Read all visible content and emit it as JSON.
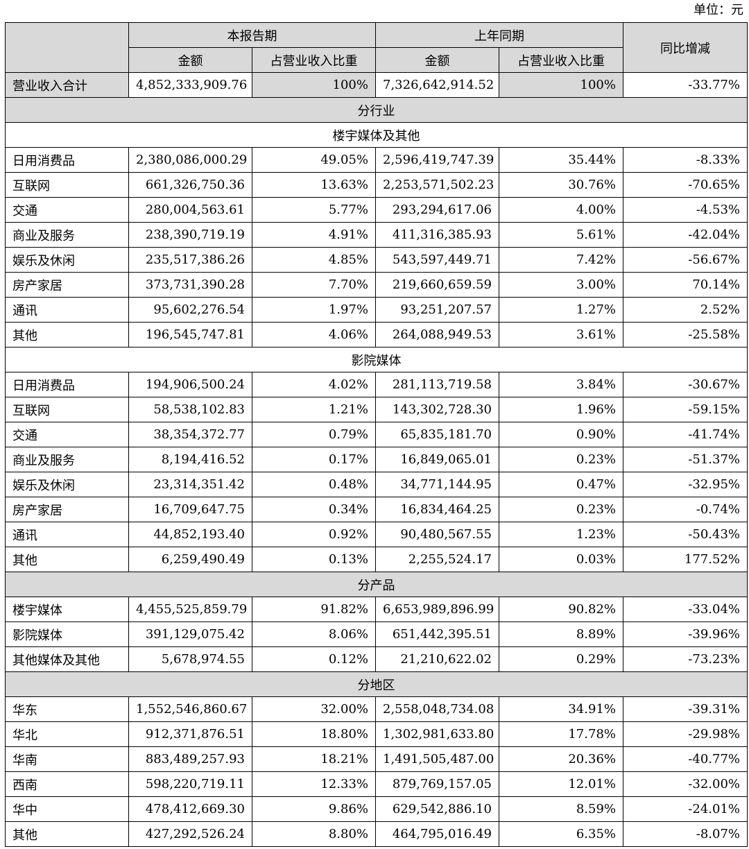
{
  "unit_label": "单位：元",
  "header": {
    "current_period": "本报告期",
    "prior_period": "上年同期",
    "yoy_change": "同比增减",
    "amount": "金额",
    "revenue_share": "占营业收入比重"
  },
  "total": {
    "label": "营业收入合计",
    "amount_current": "4,852,333,909.76",
    "share_current": "100%",
    "amount_prior": "7,326,642,914.52",
    "share_prior": "100%",
    "change": "-33.77%"
  },
  "sections": [
    {
      "title": "分行业",
      "subsections": [
        {
          "title": "楼宇媒体及其他",
          "rows": [
            [
              "日用消费品",
              "2,380,086,000.29",
              "49.05%",
              "2,596,419,747.39",
              "35.44%",
              "-8.33%"
            ],
            [
              "互联网",
              "661,326,750.36",
              "13.63%",
              "2,253,571,502.23",
              "30.76%",
              "-70.65%"
            ],
            [
              "交通",
              "280,004,563.61",
              "5.77%",
              "293,294,617.06",
              "4.00%",
              "-4.53%"
            ],
            [
              "商业及服务",
              "238,390,719.19",
              "4.91%",
              "411,316,385.93",
              "5.61%",
              "-42.04%"
            ],
            [
              "娱乐及休闲",
              "235,517,386.26",
              "4.85%",
              "543,597,449.71",
              "7.42%",
              "-56.67%"
            ],
            [
              "房产家居",
              "373,731,390.28",
              "7.70%",
              "219,660,659.59",
              "3.00%",
              "70.14%"
            ],
            [
              "通讯",
              "95,602,276.54",
              "1.97%",
              "93,251,207.57",
              "1.27%",
              "2.52%"
            ],
            [
              "其他",
              "196,545,747.81",
              "4.06%",
              "264,088,949.53",
              "3.61%",
              "-25.58%"
            ]
          ]
        },
        {
          "title": "影院媒体",
          "rows": [
            [
              "日用消费品",
              "194,906,500.24",
              "4.02%",
              "281,113,719.58",
              "3.84%",
              "-30.67%"
            ],
            [
              "互联网",
              "58,538,102.83",
              "1.21%",
              "143,302,728.30",
              "1.96%",
              "-59.15%"
            ],
            [
              "交通",
              "38,354,372.77",
              "0.79%",
              "65,835,181.70",
              "0.90%",
              "-41.74%"
            ],
            [
              "商业及服务",
              "8,194,416.52",
              "0.17%",
              "16,849,065.01",
              "0.23%",
              "-51.37%"
            ],
            [
              "娱乐及休闲",
              "23,314,351.42",
              "0.48%",
              "34,771,144.95",
              "0.47%",
              "-32.95%"
            ],
            [
              "房产家居",
              "16,709,647.75",
              "0.34%",
              "16,834,464.25",
              "0.23%",
              "-0.74%"
            ],
            [
              "通讯",
              "44,852,193.40",
              "0.92%",
              "90,480,567.55",
              "1.23%",
              "-50.43%"
            ],
            [
              "其他",
              "6,259,490.49",
              "0.13%",
              "2,255,524.17",
              "0.03%",
              "177.52%"
            ]
          ]
        }
      ]
    },
    {
      "title": "分产品",
      "subsections": [
        {
          "title": "",
          "rows": [
            [
              "楼宇媒体",
              "4,455,525,859.79",
              "91.82%",
              "6,653,989,896.99",
              "90.82%",
              "-33.04%"
            ],
            [
              "影院媒体",
              "391,129,075.42",
              "8.06%",
              "651,442,395.51",
              "8.89%",
              "-39.96%"
            ],
            [
              "其他媒体及其他",
              "5,678,974.55",
              "0.12%",
              "21,210,622.02",
              "0.29%",
              "-73.23%"
            ]
          ]
        }
      ]
    },
    {
      "title": "分地区",
      "subsections": [
        {
          "title": "",
          "rows": [
            [
              "华东",
              "1,552,546,860.67",
              "32.00%",
              "2,558,048,734.08",
              "34.91%",
              "-39.31%"
            ],
            [
              "华北",
              "912,371,876.51",
              "18.80%",
              "1,302,981,633.80",
              "17.78%",
              "-29.98%"
            ],
            [
              "华南",
              "883,489,257.93",
              "18.21%",
              "1,491,505,487.00",
              "20.36%",
              "-40.77%"
            ],
            [
              "西南",
              "598,220,719.11",
              "12.33%",
              "879,769,157.05",
              "12.01%",
              "-32.00%"
            ],
            [
              "华中",
              "478,412,669.30",
              "9.86%",
              "629,542,886.10",
              "8.59%",
              "-24.01%"
            ],
            [
              "其他",
              "427,292,526.24",
              "8.80%",
              "464,795,016.49",
              "6.35%",
              "-8.07%"
            ]
          ]
        }
      ]
    }
  ]
}
